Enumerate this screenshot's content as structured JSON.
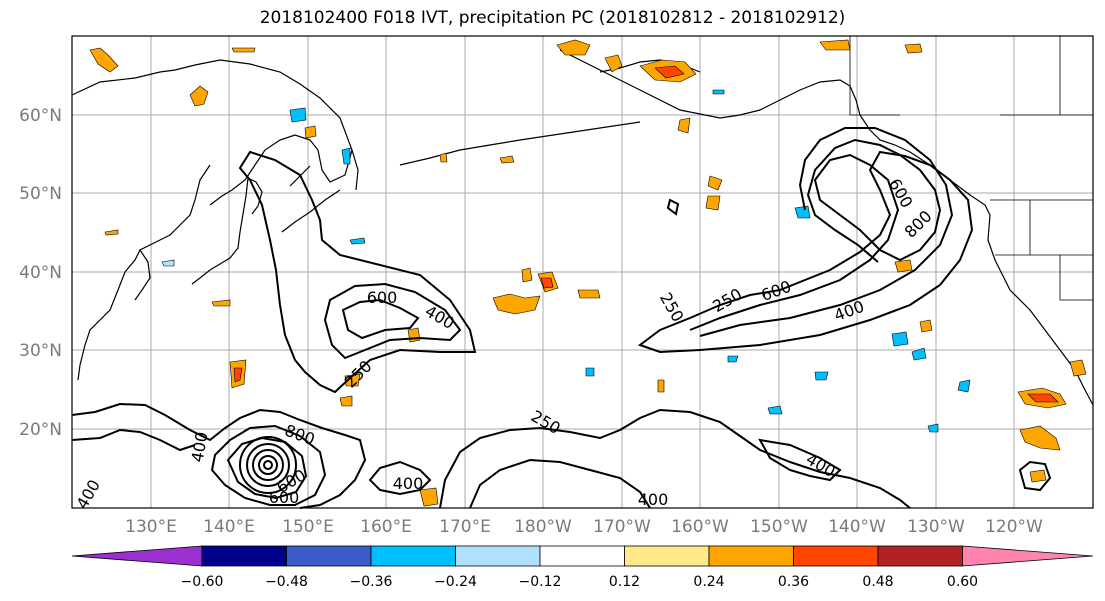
{
  "title": "2018102400 F018 IVT, precipitation PC (2018102812 - 2018102912)",
  "lon_labels": [
    "130°E",
    "140°E",
    "150°E",
    "160°E",
    "170°E",
    "180°W",
    "170°W",
    "160°W",
    "150°W",
    "140°W",
    "130°W",
    "120°W"
  ],
  "lat_labels": [
    "60°N",
    "50°N",
    "40°N",
    "30°N",
    "20°N"
  ],
  "contour_labels": [
    "600",
    "400",
    "250",
    "250",
    "250",
    "600",
    "800",
    "600",
    "400",
    "250",
    "400",
    "800",
    "600",
    "600",
    "400",
    "400",
    "400",
    "400"
  ],
  "colorbar": {
    "colors": [
      "#9b30d0",
      "#00008b",
      "#3a5bc8",
      "#00bfff",
      "#b0e2ff",
      "#ffffff",
      "#ffe98a",
      "#ffa500",
      "#ff4500",
      "#b22222",
      "#ff85b0"
    ],
    "ticks": [
      "−0.60",
      "−0.48",
      "−0.36",
      "−0.24",
      "−0.12",
      "0.12",
      "0.24",
      "0.36",
      "0.48",
      "0.60"
    ]
  }
}
